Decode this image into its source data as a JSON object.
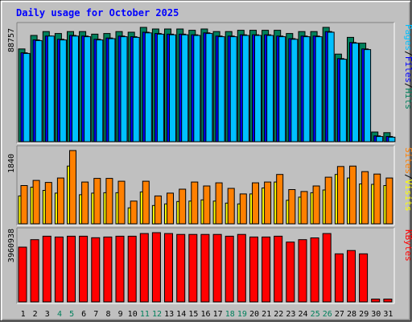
{
  "chart_data": {
    "type": "bar",
    "title": "Daily usage for October 2025",
    "categories": [
      "1",
      "2",
      "3",
      "4",
      "5",
      "6",
      "7",
      "8",
      "9",
      "10",
      "11",
      "12",
      "13",
      "14",
      "15",
      "16",
      "17",
      "18",
      "19",
      "20",
      "21",
      "22",
      "23",
      "24",
      "25",
      "26",
      "27",
      "28",
      "29",
      "30",
      "31"
    ],
    "weekend_days": [
      "4",
      "5",
      "11",
      "12",
      "18",
      "19",
      "25",
      "26"
    ],
    "colors": {
      "hits": "#00805c",
      "files": "#0000ff",
      "pages": "#00c0ff",
      "visits": "#ffff00",
      "sites": "#ff8000",
      "kbytes": "#ff0000",
      "weekend_label": "#00805c",
      "weekday_label": "#000000"
    },
    "panels": [
      {
        "name": "hits-files-pages",
        "max_label": "88757",
        "max": 88757,
        "legend": [
          {
            "text": "Hits",
            "color": "#00805c"
          },
          {
            "text": "/",
            "color": "#000000"
          },
          {
            "text": "Files",
            "color": "#0000ff"
          },
          {
            "text": "/",
            "color": "#000000"
          },
          {
            "text": "Pages",
            "color": "#00c0ff"
          }
        ],
        "series": [
          {
            "name": "Hits",
            "color": "#00805c",
            "values": [
              72000,
              82500,
              85500,
              84000,
              85500,
              85500,
              83500,
              84000,
              85500,
              85000,
              88757,
              87500,
              87500,
              87500,
              86500,
              87500,
              85500,
              85500,
              86500,
              86500,
              86500,
              86500,
              84000,
              85500,
              85500,
              88757,
              68000,
              81000,
              76500,
              7500,
              7000
            ]
          },
          {
            "name": "Files",
            "color": "#0000ff",
            "values": [
              69000,
              79000,
              82000,
              79500,
              82500,
              82000,
              79500,
              80500,
              82000,
              81500,
              85000,
              84000,
              83500,
              83500,
              83000,
              84500,
              82000,
              82000,
              83000,
              83000,
              83000,
              82000,
              80000,
              82000,
              82000,
              85500,
              64500,
              77000,
              72000,
              4500,
              4000
            ]
          },
          {
            "name": "Pages",
            "color": "#00c0ff",
            "values": [
              68500,
              78500,
              82000,
              79000,
              82000,
              81500,
              79000,
              80000,
              81500,
              81000,
              84500,
              83500,
              83000,
              83000,
              82500,
              84000,
              81500,
              81500,
              82500,
              82500,
              82500,
              81500,
              79500,
              81500,
              81500,
              85000,
              64000,
              76500,
              71500,
              4000,
              3500
            ]
          }
        ]
      },
      {
        "name": "visits-sites",
        "max_label": "1840",
        "max": 1840,
        "legend": [
          {
            "text": "Visits",
            "color": "#ffff00"
          },
          {
            "text": "/",
            "color": "#000000"
          },
          {
            "text": "Sites",
            "color": "#ff8000"
          }
        ],
        "series": [
          {
            "name": "Visits",
            "color": "#ffff00",
            "values": [
              700,
              920,
              840,
              770,
              1450,
              730,
              770,
              780,
              780,
              400,
              800,
              460,
              500,
              560,
              570,
              600,
              570,
              520,
              500,
              750,
              900,
              1050,
              590,
              670,
              780,
              850,
              1240,
              1150,
              1000,
              990,
              960
            ]
          },
          {
            "name": "Sites",
            "color": "#ff8000",
            "values": [
              960,
              1090,
              1040,
              1150,
              1840,
              1050,
              1140,
              1140,
              1070,
              570,
              1070,
              700,
              770,
              870,
              1050,
              950,
              1030,
              890,
              750,
              1030,
              1050,
              1240,
              860,
              810,
              950,
              1170,
              1440,
              1450,
              1310,
              1250,
              1150
            ]
          }
        ]
      },
      {
        "name": "kbytes",
        "max_label": "3960938",
        "max": 3960938,
        "legend": [
          {
            "text": "KBytes",
            "color": "#ff0000"
          }
        ],
        "series": [
          {
            "name": "KBytes",
            "color": "#ff0000",
            "values": [
              3130000,
              3560000,
              3760000,
              3710000,
              3760000,
              3760000,
              3670000,
              3710000,
              3760000,
              3760000,
              3910000,
              3960938,
              3910000,
              3860000,
              3860000,
              3860000,
              3860000,
              3760000,
              3860000,
              3710000,
              3710000,
              3760000,
              3420000,
              3560000,
              3660000,
              3910000,
              2750000,
              2940000,
              2750000,
              160000,
              160000
            ]
          }
        ]
      }
    ]
  }
}
